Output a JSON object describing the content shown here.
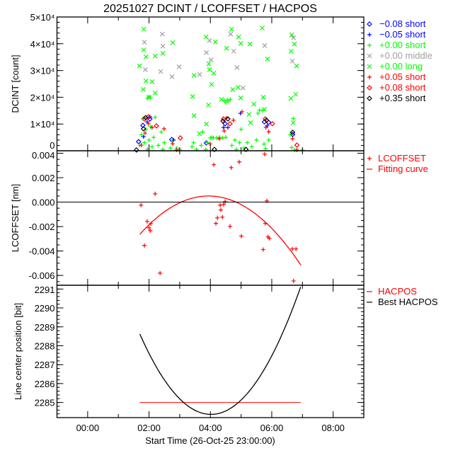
{
  "title": "20251027 DCINT / LCOFFSET / HACPOS",
  "xaxis": {
    "label": "Start Time (26-Oct-25 23:00:00)",
    "unit": "hours since start",
    "range": [
      0,
      10
    ],
    "ticks": [
      {
        "value": 1,
        "label": "00:00"
      },
      {
        "value": 3,
        "label": "02:00"
      },
      {
        "value": 5,
        "label": "04:00"
      },
      {
        "value": 7,
        "label": "06:00"
      },
      {
        "value": 9,
        "label": "08:00"
      }
    ],
    "minor_ticks": [
      2,
      4,
      6,
      8
    ]
  },
  "chart_data": [
    {
      "type": "scatter",
      "panel": "dcint",
      "ylabel": "DCINT [count]",
      "ylim": [
        0,
        50000
      ],
      "yticks": [
        {
          "value": 0,
          "label": "0"
        },
        {
          "value": 10000,
          "label": "1×10⁴"
        },
        {
          "value": 20000,
          "label": "2×10⁴"
        },
        {
          "value": 30000,
          "label": "3×10⁴"
        },
        {
          "value": 40000,
          "label": "4×10⁴"
        },
        {
          "value": 50000,
          "label": "5×10⁴"
        }
      ],
      "yminor_step": 2000,
      "series": [
        {
          "name": "−0.08 short",
          "symbol": "diamond",
          "color": "#0000ff",
          "points": [
            [
              2.8,
              9500
            ],
            [
              3.03,
              11900
            ],
            [
              3.74,
              4200
            ],
            [
              5.48,
              10100
            ],
            [
              6.76,
              10800
            ],
            [
              6.9,
              10600
            ],
            [
              7.68,
              6100
            ],
            [
              2.66,
              3400
            ],
            [
              4.87,
              2900
            ]
          ]
        },
        {
          "name": "−0.05 short",
          "symbol": "plus",
          "color": "#0000ff",
          "points": [
            [
              2.94,
              10800
            ],
            [
              3.03,
              12700
            ],
            [
              5.43,
              8700
            ],
            [
              5.57,
              8700
            ],
            [
              5.98,
              14000
            ],
            [
              6.85,
              9300
            ],
            [
              3.8,
              4000
            ],
            [
              2.82,
              5300
            ]
          ]
        },
        {
          "name": "+0.00 short",
          "symbol": "plus",
          "color": "#00ff00",
          "points": [
            [
              2.7,
              2000
            ],
            [
              2.75,
              6000
            ],
            [
              2.8,
              12000
            ],
            [
              2.85,
              3000
            ],
            [
              2.9,
              8000
            ],
            [
              2.95,
              500
            ],
            [
              3.0,
              4000
            ],
            [
              3.05,
              9000
            ],
            [
              3.1,
              1500
            ],
            [
              3.15,
              5000
            ],
            [
              3.2,
              12500
            ],
            [
              3.3,
              2000
            ],
            [
              3.4,
              7000
            ],
            [
              3.45,
              500
            ],
            [
              3.5,
              3000
            ],
            [
              3.7,
              1000
            ],
            [
              3.75,
              3500
            ],
            [
              3.9,
              1000
            ],
            [
              4.0,
              500
            ],
            [
              4.4,
              1500
            ],
            [
              4.45,
              3000
            ],
            [
              4.55,
              500
            ],
            [
              4.7,
              2000
            ],
            [
              4.75,
              7000
            ],
            [
              4.85,
              500
            ],
            [
              4.9,
              3000
            ],
            [
              5.0,
              4800
            ],
            [
              5.05,
              5000
            ],
            [
              5.1,
              4800
            ],
            [
              5.2,
              4800
            ],
            [
              5.3,
              5000
            ],
            [
              5.4,
              4800
            ],
            [
              5.5,
              5000
            ],
            [
              5.45,
              18800
            ],
            [
              5.5,
              18000
            ],
            [
              5.55,
              19000
            ],
            [
              5.6,
              18500
            ],
            [
              5.65,
              19200
            ],
            [
              5.7,
              2000
            ],
            [
              5.8,
              4000
            ],
            [
              5.85,
              500
            ],
            [
              5.95,
              3000
            ],
            [
              6.0,
              8000
            ],
            [
              6.1,
              1000
            ],
            [
              6.2,
              3000
            ],
            [
              6.35,
              1500
            ],
            [
              6.5,
              4000
            ],
            [
              6.55,
              14000
            ],
            [
              6.6,
              15200
            ],
            [
              6.7,
              15000
            ],
            [
              6.75,
              2500
            ],
            [
              6.8,
              800
            ],
            [
              6.9,
              4000
            ],
            [
              7.6,
              6000
            ],
            [
              7.65,
              1200
            ],
            [
              7.7,
              12000
            ],
            [
              7.75,
              300
            ],
            [
              8.0,
              300
            ],
            [
              2.95,
              19600
            ],
            [
              3.0,
              20200
            ],
            [
              3.05,
              19800
            ]
          ]
        },
        {
          "name": "+0.00 middle",
          "symbol": "x",
          "color": "#a0a0a0",
          "points": [
            [
              3.43,
              43600
            ],
            [
              3.45,
              39100
            ],
            [
              2.85,
              40600
            ],
            [
              2.88,
              30300
            ],
            [
              3.38,
              29600
            ],
            [
              3.75,
              27700
            ],
            [
              3.98,
              31400
            ],
            [
              4.97,
              41200
            ],
            [
              4.87,
              36700
            ],
            [
              5.66,
              43600
            ],
            [
              5.76,
              37200
            ],
            [
              5.87,
              31100
            ],
            [
              6.77,
              39300
            ],
            [
              7.71,
              42200
            ],
            [
              7.67,
              33500
            ],
            [
              5.02,
              34000
            ],
            [
              4.65,
              28500
            ],
            [
              6.06,
              23500
            ]
          ]
        },
        {
          "name": "+0.00 long",
          "symbol": "x",
          "color": "#00ff00",
          "points": [
            [
              2.83,
              45400
            ],
            [
              3.77,
              40400
            ],
            [
              2.83,
              37700
            ],
            [
              3.45,
              36400
            ],
            [
              2.9,
              35100
            ],
            [
              3.2,
              35400
            ],
            [
              2.69,
              31700
            ],
            [
              2.9,
              26100
            ],
            [
              3.1,
              25800
            ],
            [
              2.81,
              22900
            ],
            [
              3.2,
              21600
            ],
            [
              3.0,
              20000
            ],
            [
              4.86,
              42500
            ],
            [
              5.16,
              40700
            ],
            [
              5.69,
              45400
            ],
            [
              5.92,
              42500
            ],
            [
              5.99,
              40100
            ],
            [
              6.29,
              39900
            ],
            [
              5.53,
              38300
            ],
            [
              4.95,
              32500
            ],
            [
              4.97,
              30300
            ],
            [
              5.11,
              29000
            ],
            [
              4.47,
              28200
            ],
            [
              5.04,
              24800
            ],
            [
              5.73,
              22900
            ],
            [
              5.9,
              23700
            ],
            [
              4.42,
              20300
            ],
            [
              5.36,
              19200
            ],
            [
              5.99,
              19800
            ],
            [
              6.42,
              17400
            ],
            [
              6.69,
              45900
            ],
            [
              6.86,
              34300
            ],
            [
              6.72,
              20000
            ],
            [
              6.76,
              15500
            ],
            [
              7.65,
              43300
            ],
            [
              7.74,
              39900
            ],
            [
              7.63,
              37200
            ],
            [
              7.81,
              31700
            ],
            [
              7.78,
              21100
            ],
            [
              7.62,
              19600
            ],
            [
              7.7,
              10500
            ],
            [
              4.87,
              10000
            ],
            [
              4.94,
              17100
            ],
            [
              4.47,
              13100
            ],
            [
              4.64,
              6400
            ],
            [
              6.26,
              13600
            ],
            [
              6.31,
              10500
            ]
          ]
        },
        {
          "name": "+0.05 short",
          "symbol": "plus",
          "color": "#ff0000",
          "points": [
            [
              2.75,
              2100
            ],
            [
              2.87,
              6600
            ],
            [
              2.98,
              10100
            ],
            [
              3.1,
              8700
            ],
            [
              3.49,
              8200
            ],
            [
              3.77,
              2600
            ],
            [
              4.99,
              2600
            ],
            [
              5.29,
              4500
            ],
            [
              5.45,
              7400
            ],
            [
              5.52,
              12200
            ],
            [
              5.75,
              11400
            ],
            [
              6.03,
              14600
            ],
            [
              6.81,
              8700
            ],
            [
              6.9,
              7100
            ],
            [
              7.68,
              4500
            ],
            [
              7.82,
              300
            ],
            [
              3.9,
              300
            ]
          ]
        },
        {
          "name": "+0.08 short",
          "symbol": "diamond",
          "color": "#ff0000",
          "points": [
            [
              2.85,
              11900
            ],
            [
              2.98,
              12700
            ],
            [
              3.24,
              9300
            ],
            [
              5.43,
              11900
            ],
            [
              5.64,
              10100
            ],
            [
              6.79,
              11900
            ],
            [
              7.02,
              10100
            ],
            [
              7.82,
              2100
            ],
            [
              4.02,
              4800
            ]
          ]
        },
        {
          "name": "+0.35 short",
          "symbol": "diamond",
          "color": "#000000",
          "points": [
            [
              2.82,
              8200
            ],
            [
              2.89,
              12400
            ],
            [
              5.41,
              11100
            ],
            [
              5.57,
              11900
            ],
            [
              6.83,
              11400
            ],
            [
              7.68,
              6900
            ],
            [
              5.13,
              500
            ],
            [
              6.16,
              500
            ],
            [
              2.59,
              300
            ]
          ]
        }
      ]
    },
    {
      "type": "scatter",
      "panel": "lcoffset",
      "ylabel": "LCOFFSET [nm]",
      "ylim": [
        -0.0068,
        0.0042
      ],
      "yticks": [
        {
          "value": 0.004,
          "label": "0.004"
        },
        {
          "value": 0.002,
          "label": "0.002"
        },
        {
          "value": 0.0,
          "label": "0.000"
        },
        {
          "value": -0.002,
          "label": "-0.002"
        },
        {
          "value": -0.004,
          "label": "-0.004"
        },
        {
          "value": -0.006,
          "label": "-0.006"
        }
      ],
      "yminor_step": 0.0005,
      "zero_line": 0,
      "series": [
        {
          "name": "LCOFFSET",
          "symbol": "plus",
          "color": "#ff0000",
          "points": [
            [
              2.74,
              -0.00025
            ],
            [
              3.2,
              0.00068
            ],
            [
              2.94,
              -0.00158
            ],
            [
              3.0,
              -0.0021
            ],
            [
              3.06,
              -0.00176
            ],
            [
              3.04,
              -0.00234
            ],
            [
              2.85,
              -0.00355
            ],
            [
              3.36,
              -0.00581
            ],
            [
              5.11,
              0.00306
            ],
            [
              5.68,
              0.00282
            ],
            [
              5.94,
              0.00329
            ],
            [
              6.77,
              0.00392
            ],
            [
              5.32,
              -0.00025
            ],
            [
              5.34,
              -0.00064
            ],
            [
              5.43,
              -0.00019
            ],
            [
              5.48,
              4e-05
            ],
            [
              5.23,
              -0.00129
            ],
            [
              5.39,
              -0.00123
            ],
            [
              5.18,
              -0.00174
            ],
            [
              5.64,
              -0.00199
            ],
            [
              6.01,
              -0.00278
            ],
            [
              6.84,
              0.0001
            ],
            [
              6.79,
              -0.00174
            ],
            [
              6.88,
              -0.00284
            ],
            [
              6.92,
              -0.00297
            ],
            [
              6.72,
              -0.00388
            ],
            [
              7.67,
              -0.00383
            ],
            [
              7.79,
              -0.00383
            ],
            [
              7.71,
              -0.00645
            ]
          ]
        },
        {
          "name": "Fitting curve",
          "symbol": "line",
          "color": "#ff0000",
          "parabola": {
            "vertex_x": 4.94,
            "vertex_y": 0.0005,
            "a": -0.000625,
            "x_range": [
              2.7,
              7.95
            ]
          }
        }
      ]
    },
    {
      "type": "line",
      "panel": "hacpos",
      "ylabel": "Line center position [bit]",
      "ylim": [
        2284.2,
        2291.2
      ],
      "yticks": [
        {
          "value": 2285,
          "label": "2285"
        },
        {
          "value": 2286,
          "label": "2286"
        },
        {
          "value": 2287,
          "label": "2287"
        },
        {
          "value": 2288,
          "label": "2288"
        },
        {
          "value": 2289,
          "label": "2289"
        },
        {
          "value": 2290,
          "label": "2290"
        },
        {
          "value": 2291,
          "label": "2291"
        }
      ],
      "yminor_step": 0.2,
      "series": [
        {
          "name": "HACPOS",
          "symbol": "line",
          "color": "#ff0000",
          "points": [
            [
              2.7,
              2285
            ],
            [
              7.94,
              2285
            ]
          ]
        },
        {
          "name": "Best HACPOS",
          "symbol": "line",
          "color": "#000000",
          "parabola": {
            "vertex_x": 5.02,
            "vertex_y": 2284.37,
            "a": 0.79,
            "x_range": [
              2.7,
              7.94
            ]
          }
        }
      ]
    }
  ]
}
